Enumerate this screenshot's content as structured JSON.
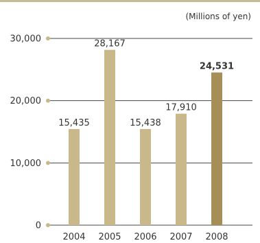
{
  "unit_label": "(Millions of yen)",
  "colors": {
    "bar": "#c8b88a",
    "bar_highlight": "#a68e57",
    "gridline": "#444444",
    "axis_dot": "#c8b88a",
    "top_rule": "#c8bc94"
  },
  "chart_data": {
    "type": "bar",
    "title": "",
    "xlabel": "",
    "ylabel": "",
    "categories": [
      "2004",
      "2005",
      "2006",
      "2007",
      "2008"
    ],
    "values": [
      15435,
      28167,
      15438,
      17910,
      24531
    ],
    "value_labels": [
      "15,435",
      "28,167",
      "15,438",
      "17,910",
      "24,531"
    ],
    "highlight_index": 4,
    "ylim": [
      0,
      30000
    ],
    "yticks": [
      0,
      10000,
      20000,
      30000
    ],
    "ytick_labels": [
      "0",
      "10,000",
      "20,000",
      "30,000"
    ],
    "grid": true,
    "legend": "none"
  }
}
